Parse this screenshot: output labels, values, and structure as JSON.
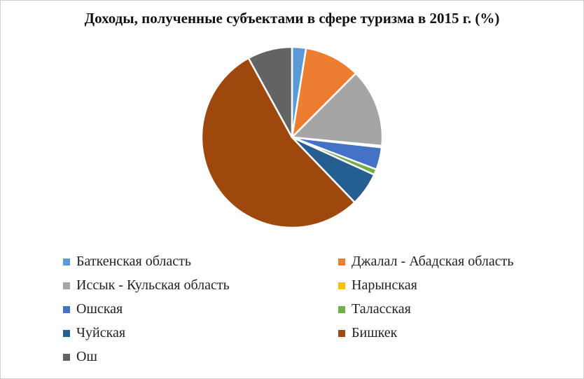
{
  "chart_data": {
    "type": "pie",
    "title": "Доходы, полученные субъектами в сфере туризма в 2015 г. (%)",
    "series": [
      {
        "name": "Баткенская область",
        "value": 2.5,
        "color": "#5b9bd5"
      },
      {
        "name": "Джалал - Абадская область",
        "value": 10.0,
        "color": "#ed7d31"
      },
      {
        "name": "Иссык - Кульская область",
        "value": 14.0,
        "color": "#a5a5a5"
      },
      {
        "name": "Нарынская",
        "value": 0.3,
        "color": "#ffc000"
      },
      {
        "name": "Ошская",
        "value": 4.0,
        "color": "#4472c4"
      },
      {
        "name": "Таласская",
        "value": 1.0,
        "color": "#70ad47"
      },
      {
        "name": "Чуйская",
        "value": 6.0,
        "color": "#255e91"
      },
      {
        "name": "Бишкек",
        "value": 54.2,
        "color": "#9e480e"
      },
      {
        "name": "Ош",
        "value": 8.0,
        "color": "#636363"
      }
    ],
    "start_angle_deg": 0,
    "direction": "clockwise",
    "legend_position": "bottom"
  }
}
